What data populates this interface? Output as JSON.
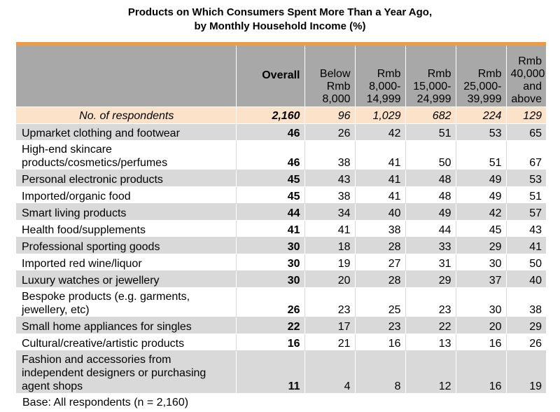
{
  "title": {
    "line1": "Products on Which Consumers Spent More Than a Year Ago,",
    "line2": "by Monthly Household Income (%)"
  },
  "colors": {
    "accent_bar": "#f39a3c",
    "header_bg": "#a8a8a8",
    "respondents_bg": "#fbe2c9",
    "row_shade": "#d9d9d9"
  },
  "chart_data": {
    "type": "table",
    "title": "Products on Which Consumers Spent More Than a Year Ago, by Monthly Household Income (%)",
    "columns": [
      {
        "label": "Overall"
      },
      {
        "label": "Below Rmb 8,000"
      },
      {
        "label": "Rmb 8,000-14,999"
      },
      {
        "label": "Rmb 15,000-24,999"
      },
      {
        "label": "Rmb 25,000-39,999"
      },
      {
        "label": "Rmb 40,000 and above"
      }
    ],
    "respondents": {
      "label": "No.  of  respondents",
      "values": [
        "2,160",
        "96",
        "1,029",
        "682",
        "224",
        "129"
      ]
    },
    "rows": [
      {
        "label": "Upmarket clothing and footwear",
        "values": [
          "46",
          "26",
          "42",
          "51",
          "53",
          "65"
        ]
      },
      {
        "label": "High-end skincare products/cosmetics/perfumes",
        "values": [
          "46",
          "38",
          "41",
          "50",
          "51",
          "67"
        ]
      },
      {
        "label": "Personal electronic products",
        "values": [
          "45",
          "43",
          "41",
          "48",
          "49",
          "53"
        ]
      },
      {
        "label": "Imported/organic food",
        "values": [
          "45",
          "38",
          "41",
          "48",
          "49",
          "51"
        ]
      },
      {
        "label": "Smart living products",
        "values": [
          "44",
          "34",
          "40",
          "49",
          "42",
          "57"
        ]
      },
      {
        "label": "Health food/supplements",
        "values": [
          "41",
          "41",
          "38",
          "44",
          "45",
          "43"
        ]
      },
      {
        "label": "Professional sporting goods",
        "values": [
          "30",
          "18",
          "28",
          "33",
          "29",
          "41"
        ]
      },
      {
        "label": "Imported red wine/liquor",
        "values": [
          "30",
          "19",
          "27",
          "31",
          "30",
          "50"
        ]
      },
      {
        "label": "Luxury watches or jewellery",
        "values": [
          "30",
          "20",
          "28",
          "29",
          "37",
          "40"
        ]
      },
      {
        "label": "Bespoke products (e.g. garments, jewellery, etc)",
        "values": [
          "26",
          "23",
          "25",
          "23",
          "30",
          "38"
        ]
      },
      {
        "label": "Small home appliances for singles",
        "values": [
          "22",
          "17",
          "23",
          "22",
          "20",
          "29"
        ]
      },
      {
        "label": "Cultural/creative/artistic products",
        "values": [
          "16",
          "21",
          "16",
          "13",
          "16",
          "26"
        ]
      },
      {
        "label": "Fashion and accessories from independent designers or purchasing agent shops",
        "values": [
          "11",
          "4",
          "8",
          "12",
          "16",
          "19"
        ]
      }
    ],
    "note": "Base: All respondents (n = 2,160)"
  }
}
